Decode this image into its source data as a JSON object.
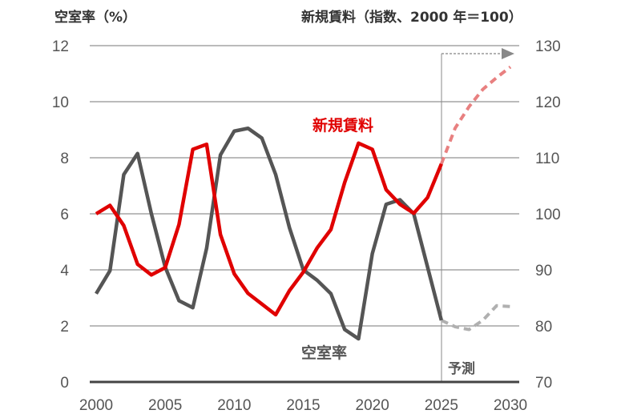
{
  "chart_data": {
    "type": "line",
    "left_axis_title": "空室率（%）",
    "right_axis_title": "新規賃料（指数、2000 年＝100）",
    "x": [
      2000,
      2001,
      2002,
      2003,
      2004,
      2005,
      2006,
      2007,
      2008,
      2009,
      2010,
      2011,
      2012,
      2013,
      2014,
      2015,
      2016,
      2017,
      2018,
      2019,
      2020,
      2021,
      2022,
      2023,
      2024,
      2025
    ],
    "forecast_x": [
      2025,
      2026,
      2027,
      2028,
      2029,
      2030
    ],
    "xlim": [
      2000,
      2030
    ],
    "xticks": [
      "2000",
      "2005",
      "2010",
      "2015",
      "2020",
      "2025",
      "2030"
    ],
    "left_ylim": [
      0,
      12
    ],
    "left_yticks": [
      "0",
      "2",
      "4",
      "6",
      "8",
      "10",
      "12"
    ],
    "right_ylim": [
      70,
      130
    ],
    "right_yticks": [
      "70",
      "80",
      "90",
      "100",
      "110",
      "120",
      "130"
    ],
    "grid": true,
    "series": [
      {
        "name": "空室率",
        "axis": "left",
        "color": "#555555",
        "forecast_color": "#b0b0b0",
        "values": [
          3.15,
          3.97,
          7.4,
          8.15,
          6.0,
          4.1,
          2.9,
          2.65,
          4.77,
          8.1,
          8.95,
          9.05,
          8.7,
          7.4,
          5.5,
          4.0,
          3.63,
          3.15,
          1.87,
          1.54,
          4.58,
          6.34,
          6.5,
          6.0,
          4.1,
          2.2
        ],
        "forecast": [
          2.2,
          1.97,
          1.87,
          2.2,
          2.72,
          2.69
        ]
      },
      {
        "name": "新規賃料",
        "axis": "right",
        "color": "#e00000",
        "forecast_color": "#e88080",
        "values": [
          100.0,
          101.5,
          97.9,
          91.0,
          89.1,
          90.4,
          98.1,
          111.5,
          112.4,
          96.3,
          89.3,
          85.8,
          83.9,
          82.0,
          86.3,
          89.6,
          93.9,
          97.2,
          105.6,
          112.6,
          111.5,
          104.3,
          101.7,
          100.1,
          102.9,
          108.9
        ],
        "forecast": [
          108.9,
          115.3,
          119.1,
          122.2,
          124.3,
          126.2
        ]
      }
    ],
    "forecast_label": "予測"
  }
}
